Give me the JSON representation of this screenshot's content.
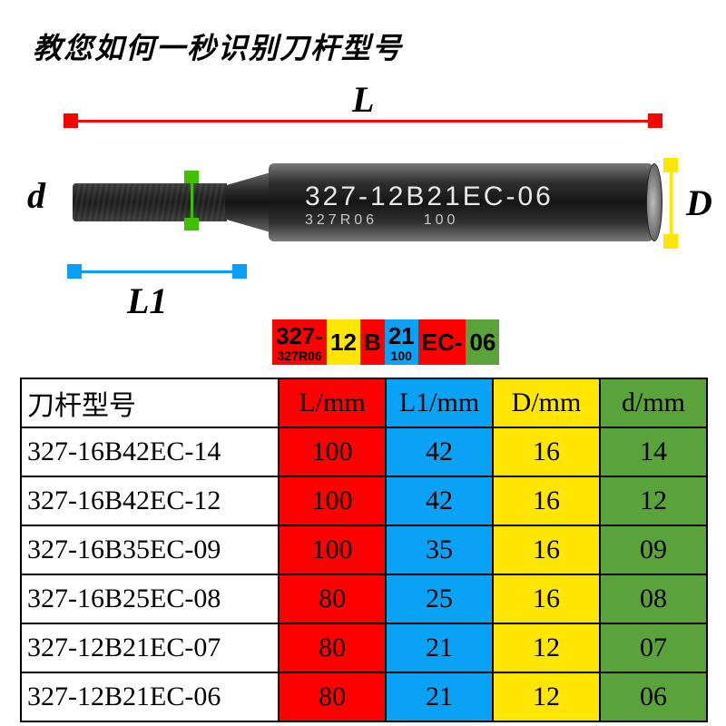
{
  "title": {
    "text": "教您如何一秒识别刀杆型号",
    "fontsize": 32,
    "color": "#000000"
  },
  "tool_marking": {
    "main": "327-12B21EC-06",
    "sub1": "327R06",
    "sub2": "100",
    "main_fontsize": 30,
    "sub_fontsize": 16
  },
  "dimensions": {
    "L": {
      "label": "L",
      "color": "#ff0000",
      "label_fontsize": 40
    },
    "L1": {
      "label": "L1",
      "color": "#0a9efc",
      "label_fontsize": 40
    },
    "D": {
      "label": "D",
      "color": "#ffe600",
      "label_fontsize": 40
    },
    "d": {
      "label": "d",
      "color": "#3fbf00",
      "label_fontsize": 40
    }
  },
  "legend": {
    "bg": "#ff0000",
    "fontsize_main": 26,
    "fontsize_sub": 14,
    "segments": [
      {
        "text": "327-",
        "sub": "327R06",
        "fg": "#000000",
        "bg": "#ff0000"
      },
      {
        "text": "12",
        "sub": "",
        "fg": "#000000",
        "bg": "#ffe600"
      },
      {
        "text": "B",
        "sub": "",
        "fg": "#000000",
        "bg": "#ff0000"
      },
      {
        "text": "21",
        "sub": "100",
        "fg": "#000000",
        "bg": "#0aa2f5"
      },
      {
        "text": "EC-",
        "sub": "",
        "fg": "#000000",
        "bg": "#ff0000"
      },
      {
        "text": "06",
        "sub": "",
        "fg": "#000000",
        "bg": "#5aa33b"
      }
    ]
  },
  "table": {
    "fontsize": 30,
    "border_color": "#000000",
    "header_bg": "#ffffff",
    "columns": [
      {
        "label": "刀杆型号",
        "bg": "#ffffff",
        "fg": "#000000"
      },
      {
        "label": "L/mm",
        "bg": "#ff0000",
        "fg": "#000000"
      },
      {
        "label": "L1/mm",
        "bg": "#0aa2f5",
        "fg": "#000000"
      },
      {
        "label": "D/mm",
        "bg": "#ffe600",
        "fg": "#000000"
      },
      {
        "label": "d/mm",
        "bg": "#5aa33b",
        "fg": "#000000"
      }
    ],
    "col_bgs": [
      "#ffffff",
      "#ff0000",
      "#0aa2f5",
      "#ffe600",
      "#5aa33b"
    ],
    "rows": [
      [
        "327-16B42EC-14",
        "100",
        "42",
        "16",
        "14"
      ],
      [
        "327-16B42EC-12",
        "100",
        "42",
        "16",
        "12"
      ],
      [
        "327-16B35EC-09",
        "100",
        "35",
        "16",
        "09"
      ],
      [
        "327-16B25EC-08",
        "80",
        "25",
        "16",
        "08"
      ],
      [
        "327-12B21EC-07",
        "80",
        "21",
        "12",
        "07"
      ],
      [
        "327-12B21EC-06",
        "80",
        "21",
        "12",
        "06"
      ]
    ]
  }
}
